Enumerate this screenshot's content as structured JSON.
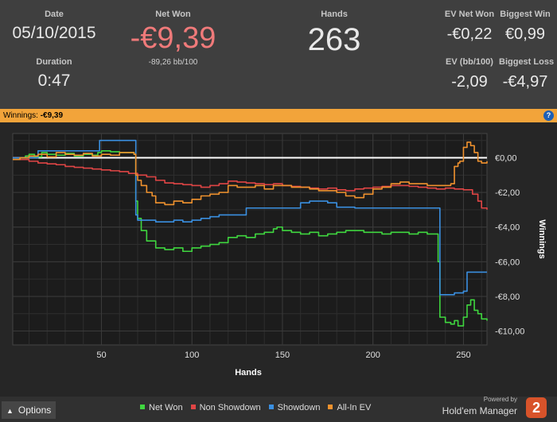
{
  "stats": {
    "date": {
      "label": "Date",
      "value": "05/10/2015"
    },
    "duration": {
      "label": "Duration",
      "value": "0:47"
    },
    "net_won": {
      "label": "Net Won",
      "value": "-€9,39",
      "sub": "-89,26 bb/100"
    },
    "hands": {
      "label": "Hands",
      "value": "263"
    },
    "ev_net_won": {
      "label": "EV Net Won",
      "value": "-€0,22"
    },
    "biggest_win": {
      "label": "Biggest Win",
      "value": "€0,99"
    },
    "ev_bb": {
      "label": "EV (bb/100)",
      "value": "-2,09"
    },
    "biggest_loss": {
      "label": "Biggest Loss",
      "value": "-€4,97"
    }
  },
  "winnings_bar": {
    "label": "Winnings:",
    "value": "-€9,39",
    "help": "?"
  },
  "footer": {
    "options_label": "Options",
    "powered_by": "Powered by",
    "brand": "Hold'em Manager",
    "brand_badge": "2"
  },
  "colors": {
    "net_won": "#3fd63f",
    "non_showdown": "#e04545",
    "showdown": "#3a8fe0",
    "allin_ev": "#f0922e",
    "accent": "#f2a43a",
    "net_won_value": "#f07a7a"
  },
  "chart_data": {
    "type": "line",
    "title": "",
    "xlabel": "Hands",
    "ylabel": "Winnings",
    "xlim": [
      1,
      263
    ],
    "ylim": [
      -10.8,
      1.4
    ],
    "xticks": [
      50,
      100,
      150,
      200,
      250
    ],
    "xtick_labels": [
      "50",
      "100",
      "150",
      "200",
      "250"
    ],
    "yticks": [
      0,
      -2,
      -4,
      -6,
      -8,
      -10
    ],
    "ytick_labels": [
      "€0,00",
      "-€2,00",
      "-€4,00",
      "-€6,00",
      "-€8,00",
      "-€10,00"
    ],
    "zero_line": 0,
    "grid": true,
    "legend_position": "bottom",
    "series": [
      {
        "name": "Net Won",
        "color": "#3fd63f",
        "x": [
          1,
          5,
          8,
          10,
          13,
          17,
          20,
          25,
          30,
          35,
          40,
          45,
          48,
          50,
          55,
          60,
          65,
          68,
          69,
          70,
          72,
          75,
          80,
          85,
          90,
          95,
          100,
          105,
          110,
          115,
          120,
          125,
          130,
          135,
          140,
          145,
          147,
          150,
          155,
          160,
          165,
          170,
          175,
          180,
          185,
          190,
          195,
          200,
          205,
          210,
          215,
          220,
          225,
          230,
          235,
          236,
          237,
          240,
          243,
          245,
          247,
          250,
          252,
          254,
          256,
          258,
          260,
          263
        ],
        "y": [
          -0.1,
          0,
          0.1,
          0.2,
          0.05,
          0.3,
          0.2,
          0.15,
          0.25,
          0.1,
          0.2,
          0.15,
          0.3,
          0.4,
          0.35,
          0.3,
          0.3,
          0.2,
          -2.5,
          -3.5,
          -4.2,
          -4.8,
          -5.2,
          -5.3,
          -5.2,
          -5.4,
          -5.2,
          -5.1,
          -5.0,
          -4.9,
          -4.6,
          -4.5,
          -4.6,
          -4.4,
          -4.3,
          -4.1,
          -4.0,
          -4.2,
          -4.3,
          -4.4,
          -4.3,
          -4.5,
          -4.4,
          -4.3,
          -4.2,
          -4.2,
          -4.3,
          -4.3,
          -4.4,
          -4.3,
          -4.3,
          -4.4,
          -4.3,
          -4.4,
          -4.4,
          -6.0,
          -9.2,
          -9.5,
          -9.6,
          -9.4,
          -9.7,
          -9.2,
          -8.5,
          -8.2,
          -8.8,
          -9.0,
          -9.3,
          -9.4
        ]
      },
      {
        "name": "Non Showdown",
        "color": "#e04545",
        "x": [
          1,
          5,
          10,
          15,
          20,
          25,
          30,
          35,
          40,
          45,
          50,
          55,
          60,
          65,
          70,
          75,
          80,
          85,
          90,
          95,
          100,
          105,
          110,
          115,
          120,
          125,
          130,
          135,
          140,
          145,
          150,
          155,
          160,
          165,
          170,
          175,
          180,
          185,
          190,
          195,
          200,
          205,
          210,
          215,
          220,
          225,
          230,
          235,
          240,
          245,
          250,
          255,
          258,
          260,
          263
        ],
        "y": [
          0,
          -0.1,
          -0.2,
          -0.3,
          -0.35,
          -0.4,
          -0.5,
          -0.55,
          -0.6,
          -0.65,
          -0.7,
          -0.75,
          -0.8,
          -0.9,
          -1.0,
          -1.1,
          -1.3,
          -1.45,
          -1.5,
          -1.55,
          -1.6,
          -1.7,
          -1.6,
          -1.5,
          -1.35,
          -1.4,
          -1.45,
          -1.5,
          -1.55,
          -1.5,
          -1.6,
          -1.65,
          -1.7,
          -1.75,
          -1.8,
          -1.75,
          -1.85,
          -1.9,
          -1.8,
          -1.75,
          -1.7,
          -1.65,
          -1.6,
          -1.6,
          -1.65,
          -1.7,
          -1.75,
          -1.8,
          -1.75,
          -1.8,
          -1.85,
          -2.1,
          -2.5,
          -2.9,
          -3.0
        ]
      },
      {
        "name": "Showdown",
        "color": "#3a8fe0",
        "x": [
          1,
          14,
          15,
          48,
          49,
          68,
          69,
          70,
          80,
          90,
          95,
          100,
          105,
          110,
          115,
          120,
          125,
          130,
          135,
          140,
          150,
          160,
          165,
          170,
          175,
          180,
          190,
          200,
          210,
          220,
          230,
          236,
          237,
          240,
          243,
          245,
          247,
          250,
          252,
          255,
          260,
          263
        ],
        "y": [
          0,
          0,
          0.4,
          0.4,
          1.0,
          1.0,
          -3.3,
          -3.6,
          -3.7,
          -3.6,
          -3.7,
          -3.6,
          -3.5,
          -3.4,
          -3.3,
          -3.3,
          -3.3,
          -2.9,
          -2.9,
          -2.9,
          -2.9,
          -2.6,
          -2.5,
          -2.5,
          -2.6,
          -2.85,
          -2.9,
          -2.9,
          -2.9,
          -2.9,
          -2.9,
          -2.9,
          -7.9,
          -7.9,
          -7.9,
          -7.8,
          -7.8,
          -7.7,
          -6.6,
          -6.6,
          -6.6,
          -6.6
        ]
      },
      {
        "name": "All-In EV",
        "color": "#f0922e",
        "x": [
          1,
          5,
          10,
          15,
          20,
          25,
          30,
          35,
          40,
          45,
          50,
          55,
          60,
          65,
          68,
          69,
          70,
          72,
          75,
          78,
          80,
          85,
          90,
          95,
          100,
          105,
          110,
          115,
          120,
          125,
          130,
          135,
          140,
          145,
          150,
          155,
          160,
          165,
          170,
          175,
          180,
          185,
          190,
          195,
          200,
          205,
          210,
          215,
          220,
          225,
          230,
          235,
          237,
          240,
          243,
          245,
          247,
          248,
          250,
          252,
          254,
          256,
          258,
          260,
          263
        ],
        "y": [
          -0.1,
          0,
          0.1,
          0.2,
          0.05,
          0.3,
          0.2,
          0.15,
          0.25,
          0.1,
          0.2,
          0.15,
          0.3,
          0.3,
          0.2,
          -1.0,
          -1.3,
          -1.6,
          -2.0,
          -2.2,
          -2.6,
          -2.7,
          -2.5,
          -2.6,
          -2.4,
          -2.2,
          -2.1,
          -2.0,
          -1.6,
          -1.7,
          -1.7,
          -1.6,
          -1.8,
          -1.6,
          -1.6,
          -1.7,
          -1.7,
          -1.8,
          -1.9,
          -1.9,
          -2.0,
          -2.2,
          -2.3,
          -2.1,
          -1.8,
          -1.7,
          -1.5,
          -1.4,
          -1.5,
          -1.5,
          -1.6,
          -1.6,
          -1.6,
          -1.6,
          -1.5,
          -0.5,
          -0.3,
          -0.2,
          0.6,
          0.9,
          0.7,
          0.3,
          -0.2,
          -0.3,
          -0.2
        ]
      }
    ]
  }
}
